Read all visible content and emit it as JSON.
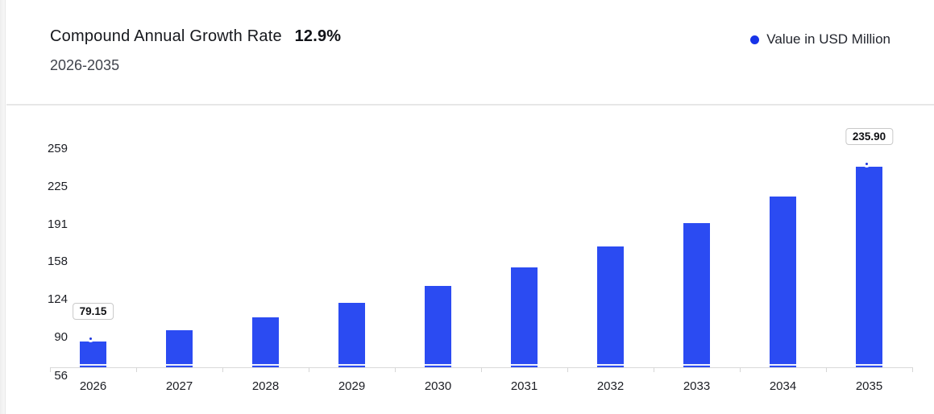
{
  "header": {
    "title": "Compound Annual Growth Rate",
    "cagr": "12.9%",
    "subtitle": "2026-2035"
  },
  "legend": {
    "label": "Value in USD Million"
  },
  "colors": {
    "bar": "#2B4BF2",
    "marker": "#1D36DD",
    "legend_dot": "#1733E8",
    "axis": "#DADADA",
    "divider": "#E7E7E7"
  },
  "chart_data": {
    "type": "bar",
    "title": "Compound Annual Growth Rate 12.9% 2026-2035",
    "categories": [
      "2026",
      "2027",
      "2028",
      "2029",
      "2030",
      "2031",
      "2032",
      "2033",
      "2034",
      "2035"
    ],
    "series": [
      {
        "name": "Value in USD Million",
        "values": [
          79.15,
          89.36,
          100.89,
          113.9,
          128.59,
          145.18,
          163.91,
          185.05,
          208.92,
          235.9
        ]
      }
    ],
    "point_labels": [
      {
        "index": 0,
        "text": "79.15"
      },
      {
        "index": 9,
        "text": "235.90"
      }
    ],
    "markers_on": [
      0,
      9
    ],
    "y_ticks": [
      56,
      90,
      124,
      158,
      191,
      225,
      259
    ],
    "ylim": [
      56,
      273
    ],
    "xlabel": "",
    "ylabel": "",
    "grid": false,
    "legend_position": "top-right"
  }
}
